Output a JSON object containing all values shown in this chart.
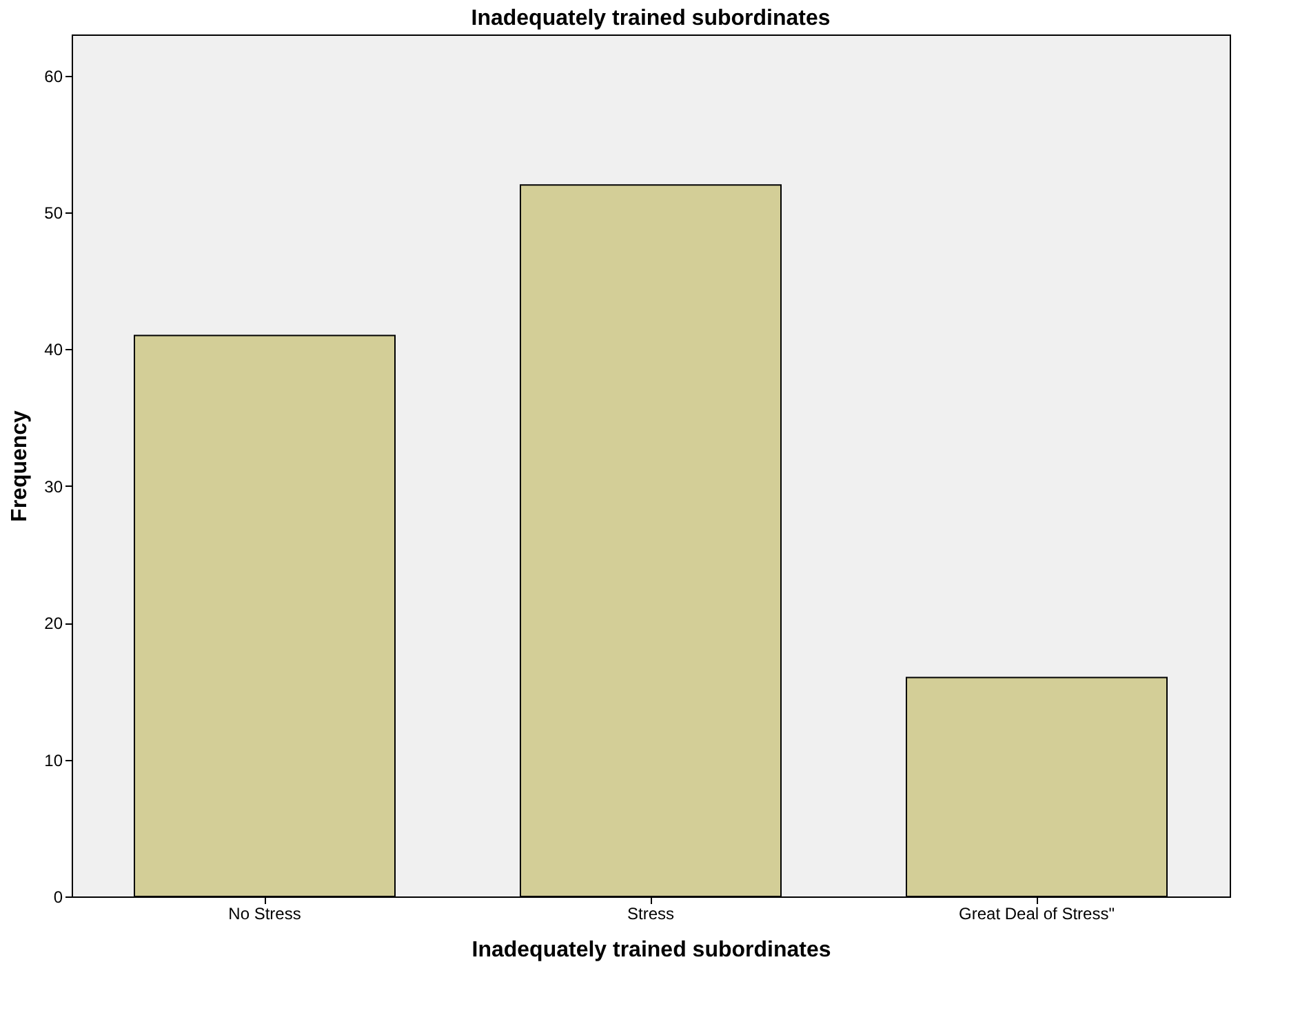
{
  "chart_data": {
    "type": "bar",
    "title": "Inadequately trained subordinates",
    "xlabel": "Inadequately trained subordinates",
    "ylabel": "Frequency",
    "categories": [
      "No Stress",
      "Stress",
      "Great Deal of Stress\""
    ],
    "values": [
      41,
      52,
      16
    ],
    "color": "#d3ce97",
    "ylim": [
      0,
      63
    ],
    "yticks": [
      0,
      10,
      20,
      30,
      40,
      50,
      60
    ]
  }
}
